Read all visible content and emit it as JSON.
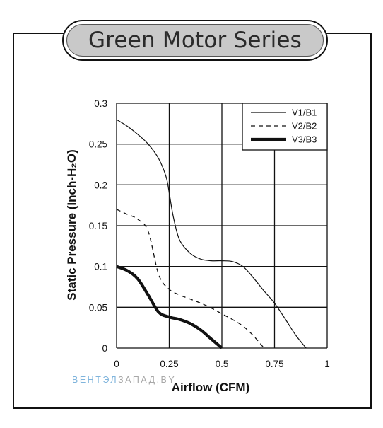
{
  "chart_data": {
    "type": "line",
    "title": "Green Motor Series",
    "xlabel": "Airflow (CFM)",
    "ylabel": "Static Pressure (Inch-H₂O)",
    "xlim": [
      0,
      1
    ],
    "ylim": [
      0,
      0.3
    ],
    "x_ticks": [
      "0",
      "0.25",
      "0.5",
      "0.75",
      "1"
    ],
    "y_ticks": [
      "0",
      "0.05",
      "0.1",
      "0.15",
      "0.2",
      "0.25",
      "0.3"
    ],
    "grid": true,
    "legend_position": "top-right",
    "series": [
      {
        "name": "V1/B1",
        "style": "thin-solid",
        "points": [
          [
            0,
            0.28
          ],
          [
            0.05,
            0.272
          ],
          [
            0.1,
            0.262
          ],
          [
            0.15,
            0.25
          ],
          [
            0.2,
            0.232
          ],
          [
            0.235,
            0.21
          ],
          [
            0.25,
            0.19
          ],
          [
            0.27,
            0.16
          ],
          [
            0.3,
            0.132
          ],
          [
            0.35,
            0.116
          ],
          [
            0.4,
            0.109
          ],
          [
            0.45,
            0.107
          ],
          [
            0.5,
            0.107
          ],
          [
            0.55,
            0.106
          ],
          [
            0.6,
            0.1
          ],
          [
            0.65,
            0.086
          ],
          [
            0.7,
            0.07
          ],
          [
            0.75,
            0.055
          ],
          [
            0.8,
            0.036
          ],
          [
            0.85,
            0.016
          ],
          [
            0.9,
            0
          ]
        ]
      },
      {
        "name": "V2/B2",
        "style": "dashed",
        "points": [
          [
            0,
            0.17
          ],
          [
            0.05,
            0.164
          ],
          [
            0.1,
            0.158
          ],
          [
            0.15,
            0.143
          ],
          [
            0.2,
            0.09
          ],
          [
            0.25,
            0.072
          ],
          [
            0.3,
            0.065
          ],
          [
            0.35,
            0.06
          ],
          [
            0.4,
            0.055
          ],
          [
            0.45,
            0.049
          ],
          [
            0.5,
            0.042
          ],
          [
            0.55,
            0.035
          ],
          [
            0.6,
            0.027
          ],
          [
            0.65,
            0.015
          ],
          [
            0.7,
            0
          ]
        ]
      },
      {
        "name": "V3/B3",
        "style": "thick-solid",
        "points": [
          [
            0,
            0.1
          ],
          [
            0.05,
            0.095
          ],
          [
            0.1,
            0.085
          ],
          [
            0.15,
            0.065
          ],
          [
            0.2,
            0.044
          ],
          [
            0.25,
            0.038
          ],
          [
            0.3,
            0.035
          ],
          [
            0.35,
            0.03
          ],
          [
            0.4,
            0.022
          ],
          [
            0.45,
            0.011
          ],
          [
            0.5,
            0
          ]
        ]
      }
    ]
  },
  "watermark": {
    "blue_part": "ВЕНТЭЛ",
    "gray_part": "ЗАПАД.BY"
  },
  "colors": {
    "line": "#111111",
    "grid": "#111111",
    "title_fill": "#c9c9c9",
    "watermark_blue": "#7fb4dc",
    "watermark_gray": "#a8a8a8"
  }
}
